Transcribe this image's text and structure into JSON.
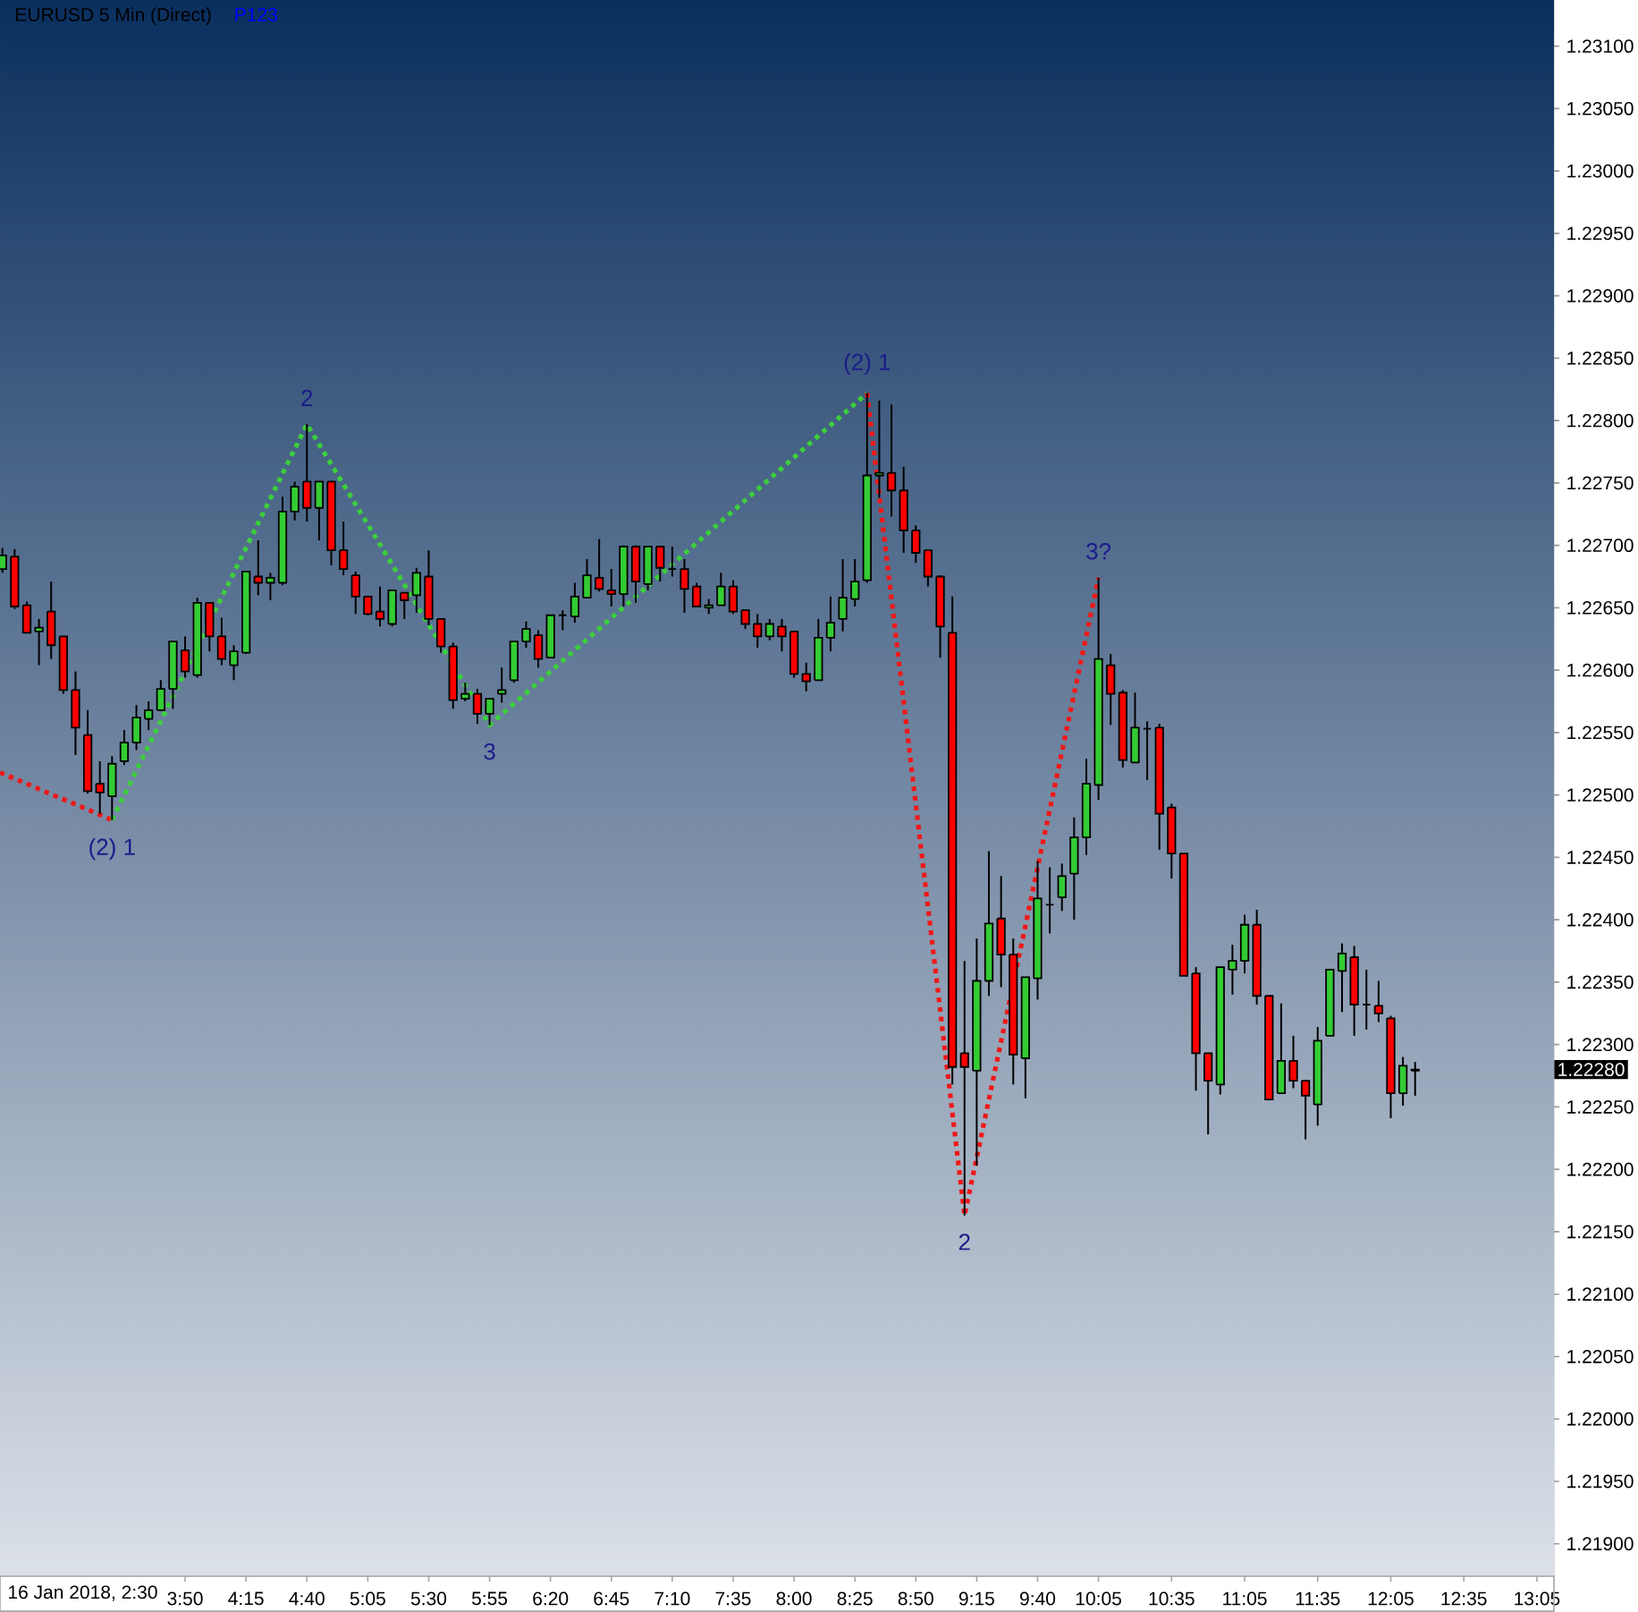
{
  "chart_data": {
    "type": "candlestick",
    "title": "EURUSD 5 Min (Direct)",
    "subtitle": "P123",
    "x": [
      "2018-01-16T02:35",
      "2018-01-16T02:40",
      "2018-01-16T02:45",
      "2018-01-16T02:50",
      "2018-01-16T02:55",
      "2018-01-16T03:00",
      "2018-01-16T03:05",
      "2018-01-16T03:10",
      "2018-01-16T03:15",
      "2018-01-16T03:20",
      "2018-01-16T03:25",
      "2018-01-16T03:30",
      "2018-01-16T03:35",
      "2018-01-16T03:40",
      "2018-01-16T03:45",
      "2018-01-16T03:50",
      "2018-01-16T03:55",
      "2018-01-16T04:00",
      "2018-01-16T04:05",
      "2018-01-16T04:10",
      "2018-01-16T04:15",
      "2018-01-16T04:20",
      "2018-01-16T04:25",
      "2018-01-16T04:30",
      "2018-01-16T04:35",
      "2018-01-16T04:40",
      "2018-01-16T04:45",
      "2018-01-16T04:50",
      "2018-01-16T04:55",
      "2018-01-16T05:00",
      "2018-01-16T05:05",
      "2018-01-16T05:10",
      "2018-01-16T05:15",
      "2018-01-16T05:20",
      "2018-01-16T05:25",
      "2018-01-16T05:30",
      "2018-01-16T05:35",
      "2018-01-16T05:40",
      "2018-01-16T05:45",
      "2018-01-16T05:50",
      "2018-01-16T05:55",
      "2018-01-16T06:00",
      "2018-01-16T06:05",
      "2018-01-16T06:10",
      "2018-01-16T06:15",
      "2018-01-16T06:20",
      "2018-01-16T06:25",
      "2018-01-16T06:30",
      "2018-01-16T06:35",
      "2018-01-16T06:40",
      "2018-01-16T06:45",
      "2018-01-16T06:50",
      "2018-01-16T06:55",
      "2018-01-16T07:00",
      "2018-01-16T07:05",
      "2018-01-16T07:10",
      "2018-01-16T07:15",
      "2018-01-16T07:20",
      "2018-01-16T07:25",
      "2018-01-16T07:30",
      "2018-01-16T07:35",
      "2018-01-16T07:40",
      "2018-01-16T07:45",
      "2018-01-16T07:50",
      "2018-01-16T07:55",
      "2018-01-16T08:00",
      "2018-01-16T08:05",
      "2018-01-16T08:10",
      "2018-01-16T08:15",
      "2018-01-16T08:20",
      "2018-01-16T08:25",
      "2018-01-16T08:30",
      "2018-01-16T08:35",
      "2018-01-16T08:40",
      "2018-01-16T08:45",
      "2018-01-16T08:50",
      "2018-01-16T08:55",
      "2018-01-16T09:00",
      "2018-01-16T09:05",
      "2018-01-16T09:10",
      "2018-01-16T09:15",
      "2018-01-16T09:20",
      "2018-01-16T09:25",
      "2018-01-16T09:30",
      "2018-01-16T09:35",
      "2018-01-16T09:40",
      "2018-01-16T09:45",
      "2018-01-16T09:50",
      "2018-01-16T09:55",
      "2018-01-16T10:00",
      "2018-01-16T10:05",
      "2018-01-16T10:10",
      "2018-01-16T10:15",
      "2018-01-16T10:20",
      "2018-01-16T10:25",
      "2018-01-16T10:30",
      "2018-01-16T10:35",
      "2018-01-16T10:40",
      "2018-01-16T10:45",
      "2018-01-16T10:50",
      "2018-01-16T10:55",
      "2018-01-16T11:00",
      "2018-01-16T11:05",
      "2018-01-16T11:10",
      "2018-01-16T11:15",
      "2018-01-16T11:20",
      "2018-01-16T11:25",
      "2018-01-16T11:30",
      "2018-01-16T11:35",
      "2018-01-16T11:40",
      "2018-01-16T11:45",
      "2018-01-16T11:50",
      "2018-01-16T11:55",
      "2018-01-16T12:00",
      "2018-01-16T12:05",
      "2018-01-16T12:10",
      "2018-01-16T12:15"
    ],
    "ohlc": [
      [
        1.22681,
        1.22698,
        1.22678,
        1.22692
      ],
      [
        1.22691,
        1.22697,
        1.22649,
        1.22651
      ],
      [
        1.22652,
        1.22655,
        1.2263,
        1.2263
      ],
      [
        1.22631,
        1.22641,
        1.22604,
        1.22634
      ],
      [
        1.22647,
        1.22671,
        1.22609,
        1.2262
      ],
      [
        1.22627,
        1.22627,
        1.22581,
        1.22584
      ],
      [
        1.22584,
        1.22599,
        1.22532,
        1.22554
      ],
      [
        1.22548,
        1.22568,
        1.22501,
        1.22503
      ],
      [
        1.22509,
        1.22527,
        1.22485,
        1.22502
      ],
      [
        1.22499,
        1.22531,
        1.2248,
        1.22525
      ],
      [
        1.22527,
        1.22552,
        1.22524,
        1.22542
      ],
      [
        1.22542,
        1.22572,
        1.22536,
        1.22562
      ],
      [
        1.22561,
        1.22575,
        1.22552,
        1.22568
      ],
      [
        1.22568,
        1.22592,
        1.22567,
        1.22585
      ],
      [
        1.22585,
        1.22623,
        1.22569,
        1.22623
      ],
      [
        1.22616,
        1.22627,
        1.22594,
        1.22599
      ],
      [
        1.22596,
        1.22658,
        1.22594,
        1.22654
      ],
      [
        1.22654,
        1.22654,
        1.22615,
        1.22627
      ],
      [
        1.22627,
        1.22642,
        1.22604,
        1.22609
      ],
      [
        1.22604,
        1.2262,
        1.22592,
        1.22615
      ],
      [
        1.22614,
        1.22679,
        1.22613,
        1.22679
      ],
      [
        1.22675,
        1.22704,
        1.2266,
        1.2267
      ],
      [
        1.2267,
        1.22678,
        1.22656,
        1.22674
      ],
      [
        1.2267,
        1.22739,
        1.22668,
        1.22727
      ],
      [
        1.22727,
        1.22751,
        1.2272,
        1.22747
      ],
      [
        1.22751,
        1.22797,
        1.22719,
        1.2273
      ],
      [
        1.2273,
        1.22751,
        1.22704,
        1.22751
      ],
      [
        1.22751,
        1.22751,
        1.22684,
        1.22696
      ],
      [
        1.22696,
        1.22719,
        1.22676,
        1.22681
      ],
      [
        1.22676,
        1.22679,
        1.22645,
        1.22659
      ],
      [
        1.22659,
        1.22659,
        1.22644,
        1.22645
      ],
      [
        1.22647,
        1.22667,
        1.22635,
        1.22641
      ],
      [
        1.22637,
        1.22664,
        1.22635,
        1.22664
      ],
      [
        1.22662,
        1.22662,
        1.22641,
        1.22656
      ],
      [
        1.2266,
        1.22682,
        1.22646,
        1.22678
      ],
      [
        1.22675,
        1.22696,
        1.22636,
        1.22641
      ],
      [
        1.22641,
        1.22641,
        1.22614,
        1.22619
      ],
      [
        1.22619,
        1.22622,
        1.22569,
        1.22576
      ],
      [
        1.22577,
        1.2259,
        1.22575,
        1.22581
      ],
      [
        1.22581,
        1.22585,
        1.22557,
        1.22565
      ],
      [
        1.22565,
        1.22577,
        1.22556,
        1.22577
      ],
      [
        1.22581,
        1.22602,
        1.22574,
        1.22584
      ],
      [
        1.22592,
        1.22623,
        1.2259,
        1.22623
      ],
      [
        1.22623,
        1.22639,
        1.22618,
        1.22633
      ],
      [
        1.22628,
        1.22632,
        1.22602,
        1.22609
      ],
      [
        1.2261,
        1.22644,
        1.2261,
        1.22644
      ],
      [
        1.22644,
        1.22648,
        1.22632,
        1.22644
      ],
      [
        1.22643,
        1.2267,
        1.22638,
        1.22659
      ],
      [
        1.22658,
        1.22689,
        1.22658,
        1.22676
      ],
      [
        1.22674,
        1.22705,
        1.22663,
        1.22665
      ],
      [
        1.22664,
        1.22681,
        1.22651,
        1.22661
      ],
      [
        1.22661,
        1.227,
        1.22651,
        1.22699
      ],
      [
        1.22699,
        1.227,
        1.22654,
        1.22671
      ],
      [
        1.22669,
        1.22699,
        1.22664,
        1.22699
      ],
      [
        1.22699,
        1.22699,
        1.22671,
        1.22682
      ],
      [
        1.22681,
        1.22699,
        1.22675,
        1.22681
      ],
      [
        1.22681,
        1.22689,
        1.22646,
        1.22665
      ],
      [
        1.22667,
        1.2267,
        1.22651,
        1.22651
      ],
      [
        1.2265,
        1.22657,
        1.22645,
        1.22652
      ],
      [
        1.22652,
        1.22678,
        1.22652,
        1.22667
      ],
      [
        1.22667,
        1.22672,
        1.22645,
        1.22647
      ],
      [
        1.22648,
        1.22648,
        1.22633,
        1.22637
      ],
      [
        1.22637,
        1.22645,
        1.22618,
        1.22627
      ],
      [
        1.22627,
        1.22641,
        1.22624,
        1.22637
      ],
      [
        1.22635,
        1.22641,
        1.22615,
        1.22627
      ],
      [
        1.22631,
        1.22631,
        1.22594,
        1.22597
      ],
      [
        1.22597,
        1.22606,
        1.22583,
        1.22591
      ],
      [
        1.22592,
        1.22641,
        1.22592,
        1.22626
      ],
      [
        1.22626,
        1.22659,
        1.22615,
        1.22638
      ],
      [
        1.22641,
        1.22689,
        1.22631,
        1.22658
      ],
      [
        1.22657,
        1.22689,
        1.22651,
        1.22671
      ],
      [
        1.22672,
        1.22822,
        1.2267,
        1.22756
      ],
      [
        1.22756,
        1.22816,
        1.22738,
        1.22758
      ],
      [
        1.22758,
        1.22813,
        1.22723,
        1.22744
      ],
      [
        1.22744,
        1.22763,
        1.22694,
        1.22712
      ],
      [
        1.22712,
        1.22716,
        1.22686,
        1.22694
      ],
      [
        1.22696,
        1.22696,
        1.22667,
        1.22675
      ],
      [
        1.22675,
        1.22676,
        1.2261,
        1.22635
      ],
      [
        1.2263,
        1.22659,
        1.22268,
        1.22282
      ],
      [
        1.22293,
        1.22367,
        1.22163,
        1.22282
      ],
      [
        1.22279,
        1.22385,
        1.22203,
        1.22351
      ],
      [
        1.22351,
        1.22455,
        1.22339,
        1.22397
      ],
      [
        1.22401,
        1.22435,
        1.22346,
        1.22372
      ],
      [
        1.22372,
        1.22385,
        1.22268,
        1.22292
      ],
      [
        1.22289,
        1.22354,
        1.22257,
        1.22354
      ],
      [
        1.22353,
        1.22447,
        1.22336,
        1.22417
      ],
      [
        1.22412,
        1.22442,
        1.22389,
        1.22412
      ],
      [
        1.22418,
        1.22445,
        1.22407,
        1.22435
      ],
      [
        1.22437,
        1.22482,
        1.224,
        1.22466
      ],
      [
        1.22466,
        1.22529,
        1.22452,
        1.22509
      ],
      [
        1.22508,
        1.22674,
        1.22496,
        1.22609
      ],
      [
        1.22604,
        1.22613,
        1.22556,
        1.22581
      ],
      [
        1.22582,
        1.22584,
        1.22522,
        1.22528
      ],
      [
        1.22526,
        1.22582,
        1.22526,
        1.22554
      ],
      [
        1.22553,
        1.22559,
        1.22512,
        1.22553
      ],
      [
        1.22554,
        1.22557,
        1.22456,
        1.22485
      ],
      [
        1.2249,
        1.22493,
        1.22433,
        1.22453
      ],
      [
        1.22453,
        1.22453,
        1.22355,
        1.22355
      ],
      [
        1.22357,
        1.22362,
        1.22263,
        1.22293
      ],
      [
        1.22293,
        1.22293,
        1.22228,
        1.22271
      ],
      [
        1.22268,
        1.22362,
        1.2226,
        1.22362
      ],
      [
        1.2236,
        1.2238,
        1.2234,
        1.22367
      ],
      [
        1.22367,
        1.22404,
        1.22357,
        1.22396
      ],
      [
        1.22396,
        1.22408,
        1.22332,
        1.22339
      ],
      [
        1.22339,
        1.22339,
        1.22256,
        1.22256
      ],
      [
        1.22261,
        1.22333,
        1.22261,
        1.22287
      ],
      [
        1.22287,
        1.22307,
        1.22265,
        1.22271
      ],
      [
        1.22271,
        1.22271,
        1.22224,
        1.22259
      ],
      [
        1.22252,
        1.22314,
        1.22235,
        1.22303
      ],
      [
        1.22307,
        1.2236,
        1.22307,
        1.2236
      ],
      [
        1.22359,
        1.22381,
        1.22326,
        1.22373
      ],
      [
        1.2237,
        1.22379,
        1.22307,
        1.22332
      ],
      [
        1.22332,
        1.2236,
        1.22312,
        1.22332
      ],
      [
        1.22331,
        1.22351,
        1.22318,
        1.22325
      ],
      [
        1.22321,
        1.22323,
        1.22241,
        1.22261
      ],
      [
        1.22261,
        1.2229,
        1.22251,
        1.22283
      ],
      [
        1.22279,
        1.22286,
        1.22259,
        1.2228
      ]
    ],
    "colors": [
      "#33cc33",
      "#ff0000",
      "#ff0000",
      "#33cc33",
      "#ff0000",
      "#ff0000",
      "#ff0000",
      "#ff0000",
      "#ff0000",
      "#33cc33",
      "#33cc33",
      "#33cc33",
      "#33cc33",
      "#33cc33",
      "#33cc33",
      "#ff0000",
      "#33cc33",
      "#ff0000",
      "#ff0000",
      "#33cc33",
      "#33cc33",
      "#ff0000",
      "#33cc33",
      "#33cc33",
      "#33cc33",
      "#ff0000",
      "#33cc33",
      "#ff0000",
      "#ff0000",
      "#ff0000",
      "#ff0000",
      "#ff0000",
      "#33cc33",
      "#ff0000",
      "#33cc33",
      "#ff0000",
      "#ff0000",
      "#ff0000",
      "#33cc33",
      "#ff0000",
      "#33cc33",
      "#33cc33",
      "#33cc33",
      "#33cc33",
      "#ff0000",
      "#33cc33",
      "#000000",
      "#33cc33",
      "#33cc33",
      "#ff0000",
      "#ff0000",
      "#33cc33",
      "#ff0000",
      "#33cc33",
      "#ff0000",
      "#000000",
      "#ff0000",
      "#ff0000",
      "#33cc33",
      "#33cc33",
      "#ff0000",
      "#ff0000",
      "#ff0000",
      "#33cc33",
      "#ff0000",
      "#ff0000",
      "#ff0000",
      "#33cc33",
      "#33cc33",
      "#33cc33",
      "#33cc33",
      "#33cc33",
      "#33cc33",
      "#ff0000",
      "#ff0000",
      "#ff0000",
      "#ff0000",
      "#ff0000",
      "#ff0000",
      "#ff0000",
      "#33cc33",
      "#33cc33",
      "#ff0000",
      "#ff0000",
      "#33cc33",
      "#33cc33",
      "#000000",
      "#33cc33",
      "#33cc33",
      "#33cc33",
      "#33cc33",
      "#ff0000",
      "#ff0000",
      "#33cc33",
      "#000000",
      "#ff0000",
      "#ff0000",
      "#ff0000",
      "#ff0000",
      "#ff0000",
      "#33cc33",
      "#33cc33",
      "#33cc33",
      "#ff0000",
      "#ff0000",
      "#33cc33",
      "#ff0000",
      "#ff0000",
      "#33cc33",
      "#33cc33",
      "#33cc33",
      "#ff0000",
      "#000000",
      "#ff0000",
      "#ff0000",
      "#33cc33",
      "#33cc33"
    ],
    "series": [
      {
        "type": "line",
        "color": "#f01818",
        "line_style": "dotted",
        "x": [
          "2018-01-16T02:34",
          "2018-01-16T03:20"
        ],
        "values": [
          1.22518,
          1.2248
        ]
      },
      {
        "type": "line",
        "color": "#3ccf3c",
        "line_style": "dotted",
        "x": [
          "2018-01-16T03:20",
          "2018-01-16T04:40",
          "2018-01-16T05:55",
          "2018-01-16T08:30"
        ],
        "values": [
          1.2248,
          1.22797,
          1.22556,
          1.22822
        ]
      },
      {
        "type": "line",
        "color": "#f01818",
        "line_style": "dotted",
        "x": [
          "2018-01-16T08:30",
          "2018-01-16T09:10",
          "2018-01-16T10:05"
        ],
        "values": [
          1.22822,
          1.22163,
          1.22674
        ]
      }
    ],
    "annotations": [
      {
        "text": "(2) 1",
        "x": "2018-01-16T03:20",
        "y": 1.2248
      },
      {
        "text": "2",
        "x": "2018-01-16T04:40",
        "y": 1.22797
      },
      {
        "text": "3",
        "x": "2018-01-16T05:55",
        "y": 1.22556
      },
      {
        "text": "(2) 1",
        "x": "2018-01-16T08:30",
        "y": 1.22822
      },
      {
        "text": "2",
        "x": "2018-01-16T09:10",
        "y": 1.22163
      },
      {
        "text": "3?",
        "x": "2018-01-16T10:05",
        "y": 1.22674
      },
      "1.22280",
      "16 Jan 2018, 2:30"
    ],
    "xlim": [
      "2018-01-16T02:34",
      "2018-01-16T13:12"
    ],
    "xticks": [
      {
        "value": "2018-01-16T03:50",
        "label": "3:50"
      },
      {
        "value": "2018-01-16T04:15",
        "label": "4:15"
      },
      {
        "value": "2018-01-16T04:40",
        "label": "4:40"
      },
      {
        "value": "2018-01-16T05:05",
        "label": "5:05"
      },
      {
        "value": "2018-01-16T05:30",
        "label": "5:30"
      },
      {
        "value": "2018-01-16T05:55",
        "label": "5:55"
      },
      {
        "value": "2018-01-16T06:20",
        "label": "6:20"
      },
      {
        "value": "2018-01-16T06:45",
        "label": "6:45"
      },
      {
        "value": "2018-01-16T07:10",
        "label": "7:10"
      },
      {
        "value": "2018-01-16T07:35",
        "label": "7:35"
      },
      {
        "value": "2018-01-16T08:00",
        "label": "8:00"
      },
      {
        "value": "2018-01-16T08:25",
        "label": "8:25"
      },
      {
        "value": "2018-01-16T08:50",
        "label": "8:50"
      },
      {
        "value": "2018-01-16T09:15",
        "label": "9:15"
      },
      {
        "value": "2018-01-16T09:40",
        "label": "9:40"
      },
      {
        "value": "2018-01-16T10:05",
        "label": "10:05"
      },
      {
        "value": "2018-01-16T10:35",
        "label": "10:35"
      },
      {
        "value": "2018-01-16T11:05",
        "label": "11:05"
      },
      {
        "value": "2018-01-16T11:35",
        "label": "11:35"
      },
      {
        "value": "2018-01-16T12:05",
        "label": "12:05"
      },
      {
        "value": "2018-01-16T12:35",
        "label": "12:35"
      },
      {
        "value": "2018-01-16T13:05",
        "label": "13:05"
      }
    ],
    "ylim": [
      1.21874,
      1.23137
    ],
    "yticks": [
      {
        "value": 1.219,
        "label": "1.21900"
      },
      {
        "value": 1.2195,
        "label": "1.21950"
      },
      {
        "value": 1.22,
        "label": "1.22000"
      },
      {
        "value": 1.2205,
        "label": "1.22050"
      },
      {
        "value": 1.221,
        "label": "1.22100"
      },
      {
        "value": 1.2215,
        "label": "1.22150"
      },
      {
        "value": 1.222,
        "label": "1.22200"
      },
      {
        "value": 1.2225,
        "label": "1.22250"
      },
      {
        "value": 1.223,
        "label": "1.22300"
      },
      {
        "value": 1.2235,
        "label": "1.22350"
      },
      {
        "value": 1.224,
        "label": "1.22400"
      },
      {
        "value": 1.2245,
        "label": "1.22450"
      },
      {
        "value": 1.225,
        "label": "1.22500"
      },
      {
        "value": 1.2255,
        "label": "1.22550"
      },
      {
        "value": 1.226,
        "label": "1.22600"
      },
      {
        "value": 1.2265,
        "label": "1.22650"
      },
      {
        "value": 1.227,
        "label": "1.22700"
      },
      {
        "value": 1.2275,
        "label": "1.22750"
      },
      {
        "value": 1.228,
        "label": "1.22800"
      },
      {
        "value": 1.2285,
        "label": "1.22850"
      },
      {
        "value": 1.229,
        "label": "1.22900"
      },
      {
        "value": 1.2295,
        "label": "1.22950"
      },
      {
        "value": 1.23,
        "label": "1.23000"
      },
      {
        "value": 1.2305,
        "label": "1.23050"
      },
      {
        "value": 1.231,
        "label": "1.23100"
      }
    ]
  }
}
